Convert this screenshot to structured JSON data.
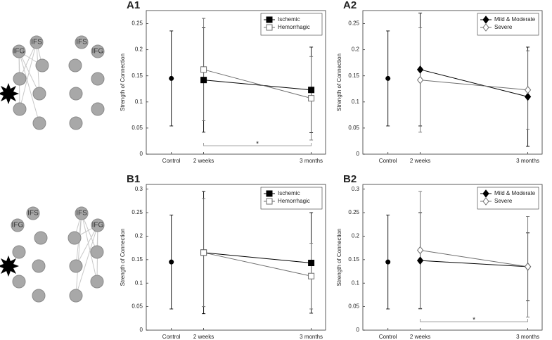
{
  "networks": [
    {
      "labels": [
        "IFS",
        "IFG"
      ]
    },
    {
      "labels": [
        "IFS",
        "IFG"
      ]
    },
    {
      "labels": [
        "IFS",
        "IFG"
      ]
    },
    {
      "labels": [
        "IFS",
        "IFG"
      ]
    }
  ],
  "chart_data": [
    {
      "type": "line",
      "title": "A1",
      "ylabel": "Strength of Connection",
      "categories": [
        "Control",
        "2 weeks",
        "3 months"
      ],
      "ylim": [
        0,
        0.275
      ],
      "yticks": [
        0,
        0.05,
        0.1,
        0.15,
        0.2,
        0.25
      ],
      "control": {
        "value": 0.145,
        "error": 0.091
      },
      "series": [
        {
          "name": "Ischemic",
          "color": "#000000",
          "marker": "square",
          "filled": true,
          "values": [
            null,
            0.142,
            0.123
          ],
          "errors": [
            null,
            0.1,
            0.082
          ]
        },
        {
          "name": "Hemorrhagic",
          "color": "#6e6e6e",
          "marker": "square",
          "filled": false,
          "values": [
            null,
            0.162,
            0.107
          ],
          "errors": [
            null,
            0.098,
            0.08
          ]
        }
      ],
      "annotations": [
        "*"
      ]
    },
    {
      "type": "line",
      "title": "A2",
      "ylabel": "Strength of Connection",
      "categories": [
        "Control",
        "2 weeks",
        "3 months"
      ],
      "ylim": [
        0,
        0.275
      ],
      "yticks": [
        0,
        0.05,
        0.1,
        0.15,
        0.2,
        0.25
      ],
      "control": {
        "value": 0.145,
        "error": 0.091
      },
      "series": [
        {
          "name": "Mild & Moderate",
          "color": "#000000",
          "marker": "diamond",
          "filled": true,
          "values": [
            null,
            0.162,
            0.11
          ],
          "errors": [
            null,
            0.108,
            0.095
          ]
        },
        {
          "name": "Severe",
          "color": "#6e6e6e",
          "marker": "diamond",
          "filled": false,
          "values": [
            null,
            0.142,
            0.123
          ],
          "errors": [
            null,
            0.1,
            0.075
          ]
        }
      ],
      "annotations": []
    },
    {
      "type": "line",
      "title": "B1",
      "ylabel": "Strength of Connection",
      "categories": [
        "Control",
        "2 weeks",
        "3 months"
      ],
      "ylim": [
        0,
        0.31
      ],
      "yticks": [
        0,
        0.05,
        0.1,
        0.15,
        0.2,
        0.25,
        0.3
      ],
      "control": {
        "value": 0.145,
        "error": 0.1
      },
      "series": [
        {
          "name": "Ischemic",
          "color": "#000000",
          "marker": "square",
          "filled": true,
          "values": [
            null,
            0.165,
            0.143
          ],
          "errors": [
            null,
            0.13,
            0.107
          ]
        },
        {
          "name": "Hemorrhagic",
          "color": "#6e6e6e",
          "marker": "square",
          "filled": false,
          "values": [
            null,
            0.165,
            0.115
          ],
          "errors": [
            null,
            0.115,
            0.07
          ]
        }
      ],
      "annotations": []
    },
    {
      "type": "line",
      "title": "B2",
      "ylabel": "Strength of Connection",
      "categories": [
        "Control",
        "2 weeks",
        "3 months"
      ],
      "ylim": [
        0,
        0.31
      ],
      "yticks": [
        0,
        0.05,
        0.1,
        0.15,
        0.2,
        0.25,
        0.3
      ],
      "control": {
        "value": 0.145,
        "error": 0.1
      },
      "series": [
        {
          "name": "Mild & Moderate",
          "color": "#000000",
          "marker": "diamond",
          "filled": true,
          "values": [
            null,
            0.148,
            0.135
          ],
          "errors": [
            null,
            0.102,
            0.072
          ]
        },
        {
          "name": "Severe",
          "color": "#6e6e6e",
          "marker": "diamond",
          "filled": false,
          "values": [
            null,
            0.17,
            0.135
          ],
          "errors": [
            null,
            0.125,
            0.107
          ]
        }
      ],
      "annotations": [
        "*"
      ]
    }
  ]
}
